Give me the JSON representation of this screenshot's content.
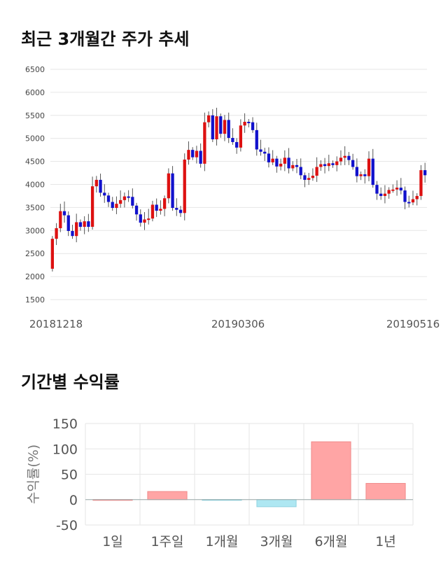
{
  "sections": {
    "price_title": "최근 3개월간 주가 추세",
    "returns_title": "기간별 수익률"
  },
  "colors": {
    "up": "#dd1111",
    "down": "#1111cc",
    "wick": "#555555",
    "grid": "#e6e6e6",
    "bar_positive": "#ffa5a5",
    "bar_negative": "#aee7f2"
  },
  "chart_data": [
    {
      "type": "candlestick",
      "title": "최근 3개월간 주가 추세",
      "ylim": [
        1500,
        6500
      ],
      "yticks": [
        "6500",
        "6000",
        "5500",
        "5000",
        "4500",
        "4000",
        "3500",
        "3000",
        "2500",
        "2000",
        "1500"
      ],
      "xticks": [
        "20181218",
        "20190306",
        "20190516"
      ],
      "closes": [
        2820,
        3050,
        3420,
        3330,
        2990,
        2880,
        3180,
        3080,
        3200,
        3080,
        3960,
        4100,
        3820,
        3760,
        3620,
        3490,
        3580,
        3660,
        3740,
        3730,
        3540,
        3350,
        3170,
        3240,
        3260,
        3560,
        3430,
        3470,
        3700,
        4240,
        3490,
        3450,
        3380,
        4540,
        4750,
        4590,
        4730,
        4450,
        5350,
        5500,
        4980,
        5480,
        5100,
        5400,
        5010,
        4920,
        4800,
        5280,
        5360,
        5350,
        5180,
        4760,
        4710,
        4670,
        4480,
        4560,
        4390,
        4450,
        4580,
        4350,
        4420,
        4380,
        4200,
        4100,
        4140,
        4190,
        4380,
        4440,
        4400,
        4460,
        4420,
        4500,
        4580,
        4620,
        4530,
        4380,
        4180,
        4220,
        4180,
        4560,
        3990,
        3800,
        3750,
        3800,
        3880,
        3890,
        3930,
        3870,
        3620,
        3610,
        3680,
        3750,
        4310,
        4200
      ]
    },
    {
      "type": "bar",
      "title": "기간별 수익률",
      "ylabel": "수익률(%)",
      "categories": [
        "1일",
        "1주일",
        "1개월",
        "3개월",
        "6개월",
        "1년"
      ],
      "values": [
        0,
        16,
        -1,
        -14,
        114,
        32
      ],
      "ylim": [
        -50,
        150
      ],
      "yticks": [
        "150",
        "100",
        "50",
        "0",
        "-50"
      ]
    }
  ]
}
